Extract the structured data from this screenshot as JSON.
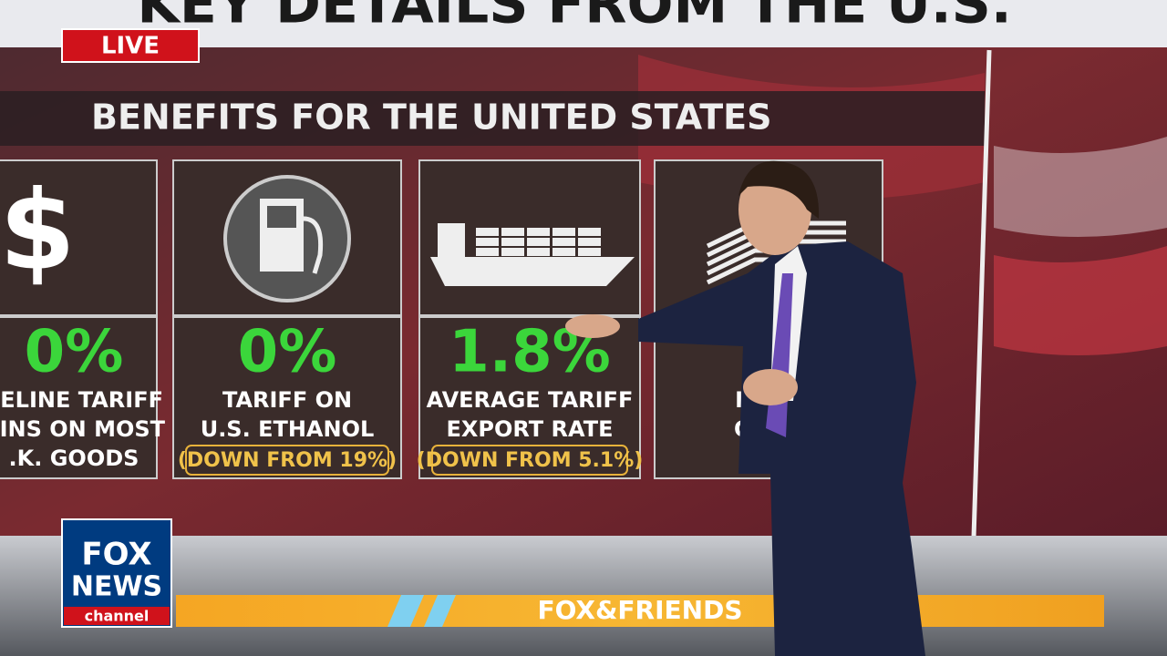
{
  "header": {
    "title": "KEY DETAILS FROM THE U.S.",
    "live": "LIVE"
  },
  "section": {
    "title": "BENEFITS FOR THE UNITED STATES"
  },
  "cards": [
    {
      "icon": "$",
      "value": "0%",
      "lines": [
        "SELINE TARIFF",
        "AINS ON MOST",
        ".K. GOODS"
      ]
    },
    {
      "value": "0%",
      "lines": [
        "TARIFF ON",
        "U.S. ETHANOL"
      ],
      "note": "(DOWN FROM 19%)"
    },
    {
      "value": "1.8%",
      "lines": [
        "AVERAGE TARIFF",
        "EXPORT RATE"
      ],
      "note": "(DOWN FROM 5.1%)"
    },
    {
      "value": "$",
      "lines": [
        "IN NE",
        "OPPO"
      ]
    }
  ],
  "logo": {
    "line1": "FOX",
    "line2": "NEWS",
    "line3": "channel"
  },
  "ticker": {
    "show": "FOX&FRIENDS"
  }
}
